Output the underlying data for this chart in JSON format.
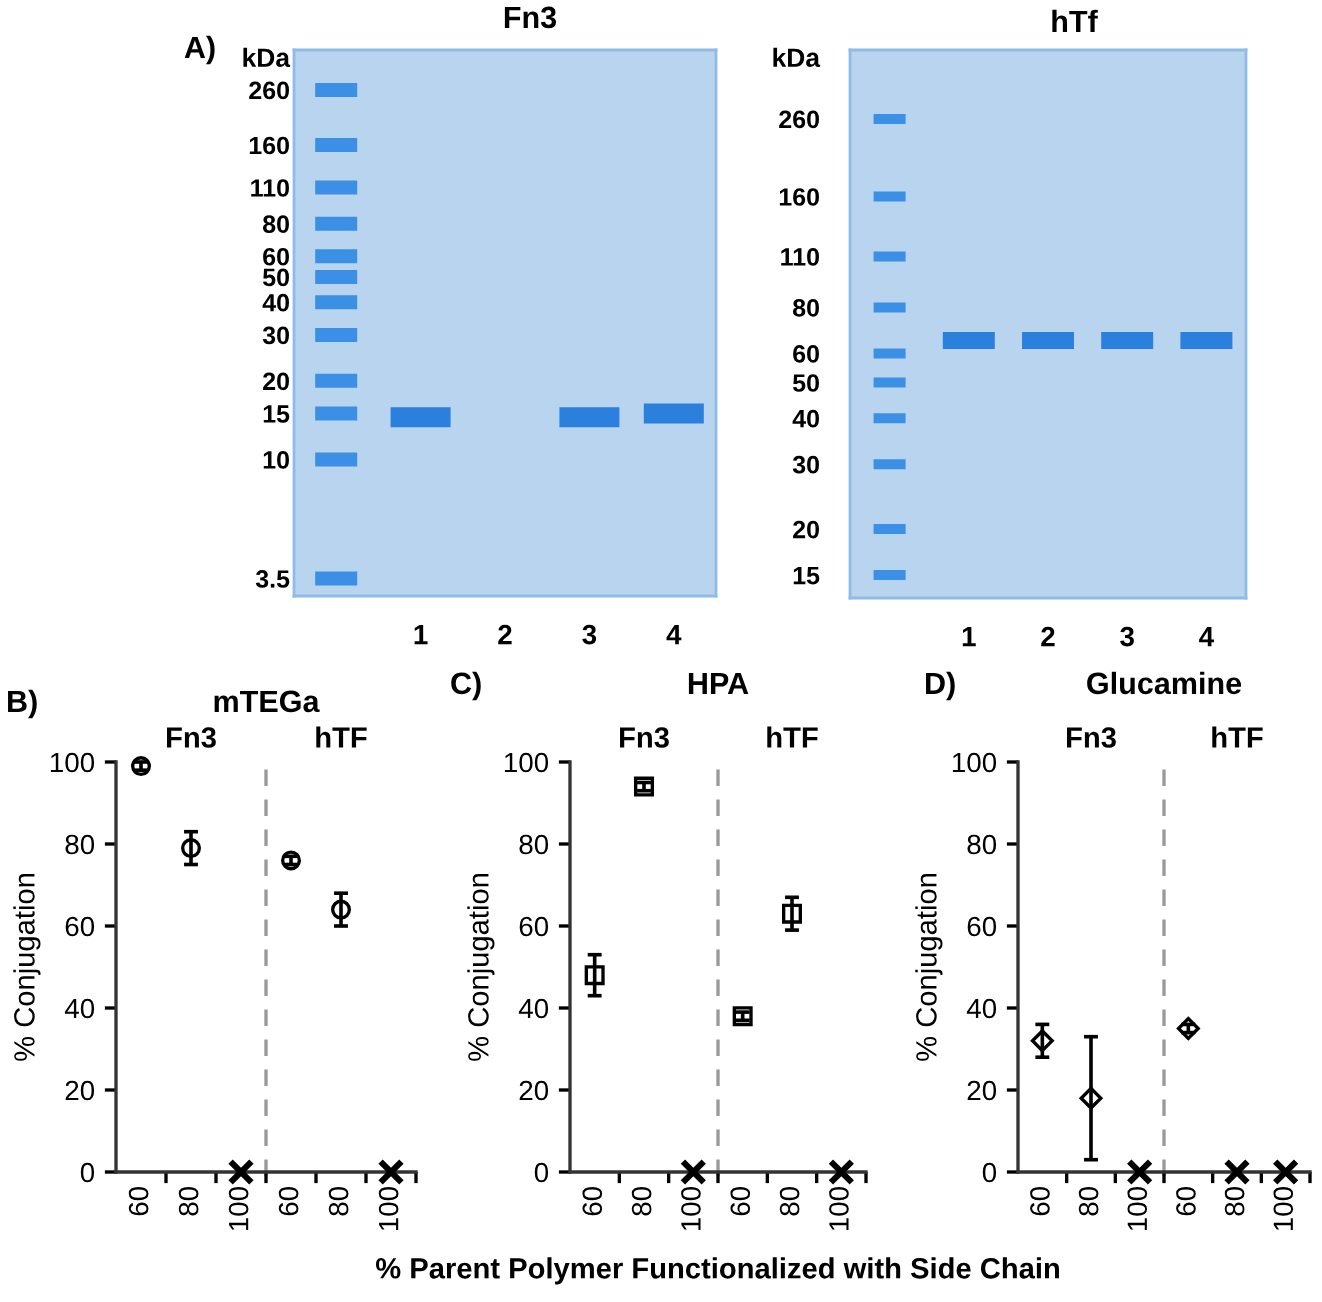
{
  "chart_data": [
    {
      "type": "scatter",
      "title": "Fn3",
      "ylabel": "kDa",
      "categories": [
        null,
        "1",
        "2",
        "3",
        "4"
      ],
      "log": true,
      "ylim": [
        3,
        370
      ],
      "yticks": [
        3.5,
        10,
        15,
        20,
        30,
        40,
        50,
        60,
        80,
        110,
        160,
        260
      ],
      "annotations": [
        "A)"
      ],
      "series": [
        {
          "color": "#2a80dc",
          "values": [
            null,
            14.5,
            null,
            14.5,
            15
          ]
        },
        {
          "color": "#3b8fe4",
          "values": [
            260,
            null,
            null,
            null,
            null
          ]
        },
        {
          "color": "#3b8fe4",
          "values": [
            160,
            null,
            null,
            null,
            null
          ]
        },
        {
          "color": "#3b8fe4",
          "values": [
            110,
            null,
            null,
            null,
            null
          ]
        },
        {
          "color": "#3b8fe4",
          "values": [
            80,
            null,
            null,
            null,
            null
          ]
        },
        {
          "color": "#3b8fe4",
          "values": [
            60,
            null,
            null,
            null,
            null
          ]
        },
        {
          "color": "#3b8fe4",
          "values": [
            50,
            null,
            null,
            null,
            null
          ]
        },
        {
          "color": "#3b8fe4",
          "values": [
            40,
            null,
            null,
            null,
            null
          ]
        },
        {
          "color": "#3b8fe4",
          "values": [
            30,
            null,
            null,
            null,
            null
          ]
        },
        {
          "color": "#3b8fe4",
          "values": [
            20,
            null,
            null,
            null,
            null
          ]
        },
        {
          "color": "#3b8fe4",
          "values": [
            15,
            null,
            null,
            null,
            null
          ]
        },
        {
          "color": "#3b8fe4",
          "values": [
            10,
            null,
            null,
            null,
            null
          ]
        },
        {
          "color": "#3b8fe4",
          "values": [
            3.5,
            null,
            null,
            null,
            null
          ]
        }
      ]
    },
    {
      "type": "scatter",
      "title": "hTf",
      "ylabel": "kDa",
      "categories": [
        null,
        "1",
        "2",
        "3",
        "4"
      ],
      "log": true,
      "ylim": [
        13,
        400
      ],
      "yticks": [
        15,
        20,
        30,
        40,
        50,
        60,
        80,
        110,
        160,
        260
      ],
      "series": [
        {
          "color": "#2a80dc",
          "values": [
            null,
            65,
            65,
            65,
            65
          ]
        },
        {
          "color": "#3b8fe4",
          "values": [
            260,
            null,
            null,
            null,
            null
          ]
        },
        {
          "color": "#3b8fe4",
          "values": [
            160,
            null,
            null,
            null,
            null
          ]
        },
        {
          "color": "#3b8fe4",
          "values": [
            110,
            null,
            null,
            null,
            null
          ]
        },
        {
          "color": "#3b8fe4",
          "values": [
            80,
            null,
            null,
            null,
            null
          ]
        },
        {
          "color": "#3b8fe4",
          "values": [
            60,
            null,
            null,
            null,
            null
          ]
        },
        {
          "color": "#3b8fe4",
          "values": [
            50,
            null,
            null,
            null,
            null
          ]
        },
        {
          "color": "#3b8fe4",
          "values": [
            40,
            null,
            null,
            null,
            null
          ]
        },
        {
          "color": "#3b8fe4",
          "values": [
            30,
            null,
            null,
            null,
            null
          ]
        },
        {
          "color": "#3b8fe4",
          "values": [
            20,
            null,
            null,
            null,
            null
          ]
        },
        {
          "color": "#3b8fe4",
          "values": [
            15,
            null,
            null,
            null,
            null
          ]
        }
      ]
    },
    {
      "type": "scatter",
      "title": "mTEGa",
      "ylabel": "% Conjugation",
      "categories": [
        "60",
        "80",
        "100",
        "60",
        "80",
        "100"
      ],
      "ylim": [
        0,
        100
      ],
      "yticks": [
        0,
        20,
        40,
        60,
        80,
        100
      ],
      "annotations": [
        "B)",
        "Fn3",
        "hTF"
      ],
      "series": [
        {
          "color": "#000000",
          "marker": "circle",
          "values": [
            99,
            79,
            null,
            76,
            64,
            null
          ],
          "errors": [
            1,
            4,
            null,
            1,
            4,
            null
          ]
        },
        {
          "color": "#000000",
          "marker": "cross",
          "values": [
            null,
            null,
            0,
            null,
            null,
            0
          ]
        }
      ]
    },
    {
      "type": "scatter",
      "title": "HPA",
      "ylabel": "% Conjugation",
      "xlabel": "% Parent Polymer Functionalized with Side Chain",
      "categories": [
        "60",
        "80",
        "100",
        "60",
        "80",
        "100"
      ],
      "ylim": [
        0,
        100
      ],
      "yticks": [
        0,
        20,
        40,
        60,
        80,
        100
      ],
      "annotations": [
        "C)",
        "Fn3",
        "hTF"
      ],
      "series": [
        {
          "color": "#000000",
          "marker": "square",
          "values": [
            48,
            94,
            null,
            38,
            63,
            null
          ],
          "errors": [
            5,
            1,
            null,
            1,
            4,
            null
          ]
        },
        {
          "color": "#000000",
          "marker": "cross",
          "values": [
            null,
            null,
            0,
            null,
            null,
            0
          ]
        }
      ]
    },
    {
      "type": "scatter",
      "title": "Glucamine",
      "ylabel": "% Conjugation",
      "categories": [
        "60",
        "80",
        "100",
        "60",
        "80",
        "100"
      ],
      "ylim": [
        0,
        100
      ],
      "yticks": [
        0,
        20,
        40,
        60,
        80,
        100
      ],
      "annotations": [
        "D)",
        "Fn3",
        "hTF"
      ],
      "series": [
        {
          "color": "#000000",
          "marker": "diamond",
          "values": [
            32,
            18,
            null,
            35,
            null,
            null
          ],
          "errors": [
            4,
            15,
            null,
            1,
            null,
            null
          ]
        },
        {
          "color": "#000000",
          "marker": "cross",
          "values": [
            null,
            null,
            0,
            null,
            0,
            0
          ]
        }
      ]
    }
  ]
}
